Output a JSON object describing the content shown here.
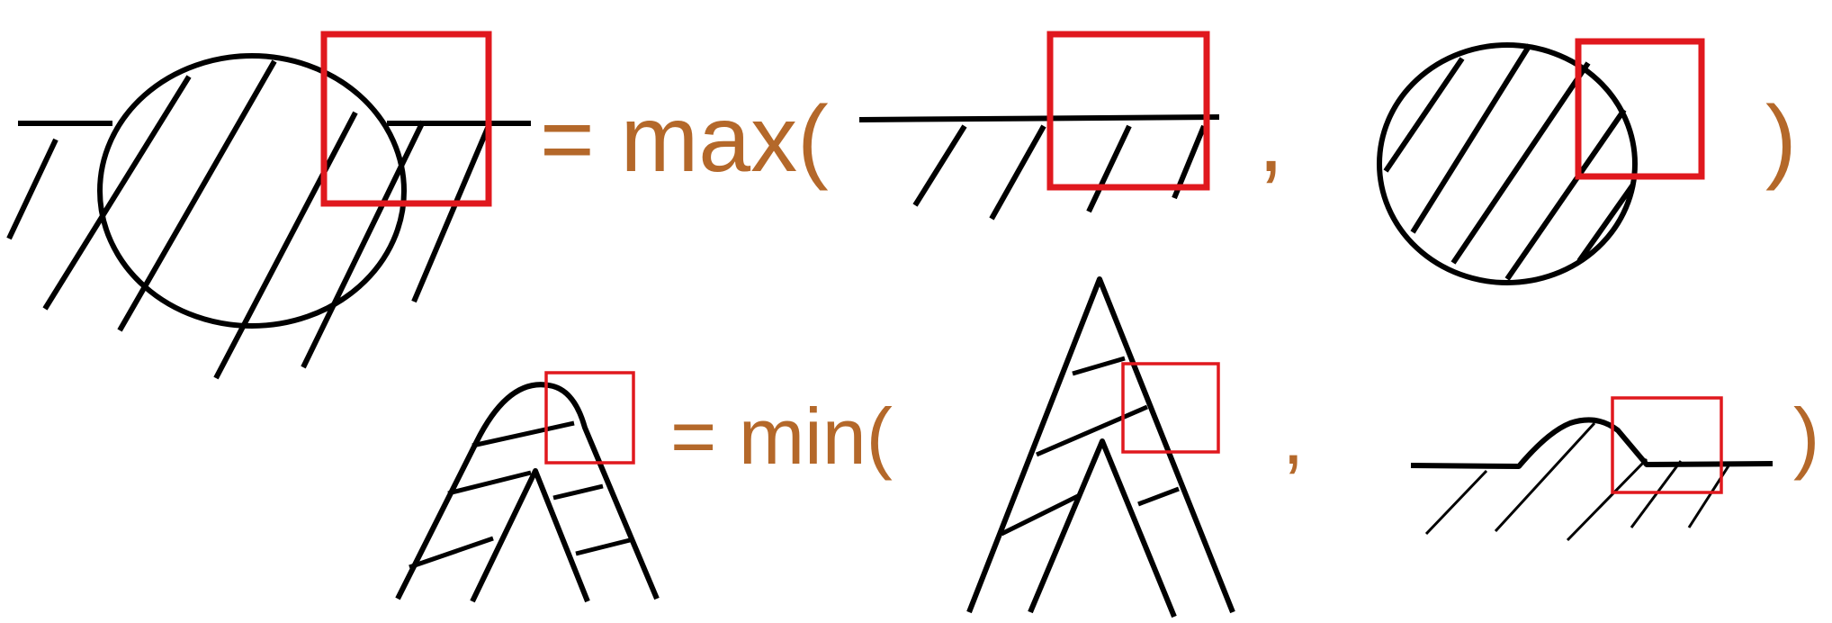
{
  "expressions": [
    {
      "operator": "= max(",
      "separator": ",",
      "close": ")"
    },
    {
      "operator": "= min(",
      "separator": ",",
      "close": ")"
    }
  ],
  "colors": {
    "text": "#B4682A",
    "highlight_box": "#E0181E",
    "ink": "#000000",
    "background": "#FFFFFF"
  }
}
